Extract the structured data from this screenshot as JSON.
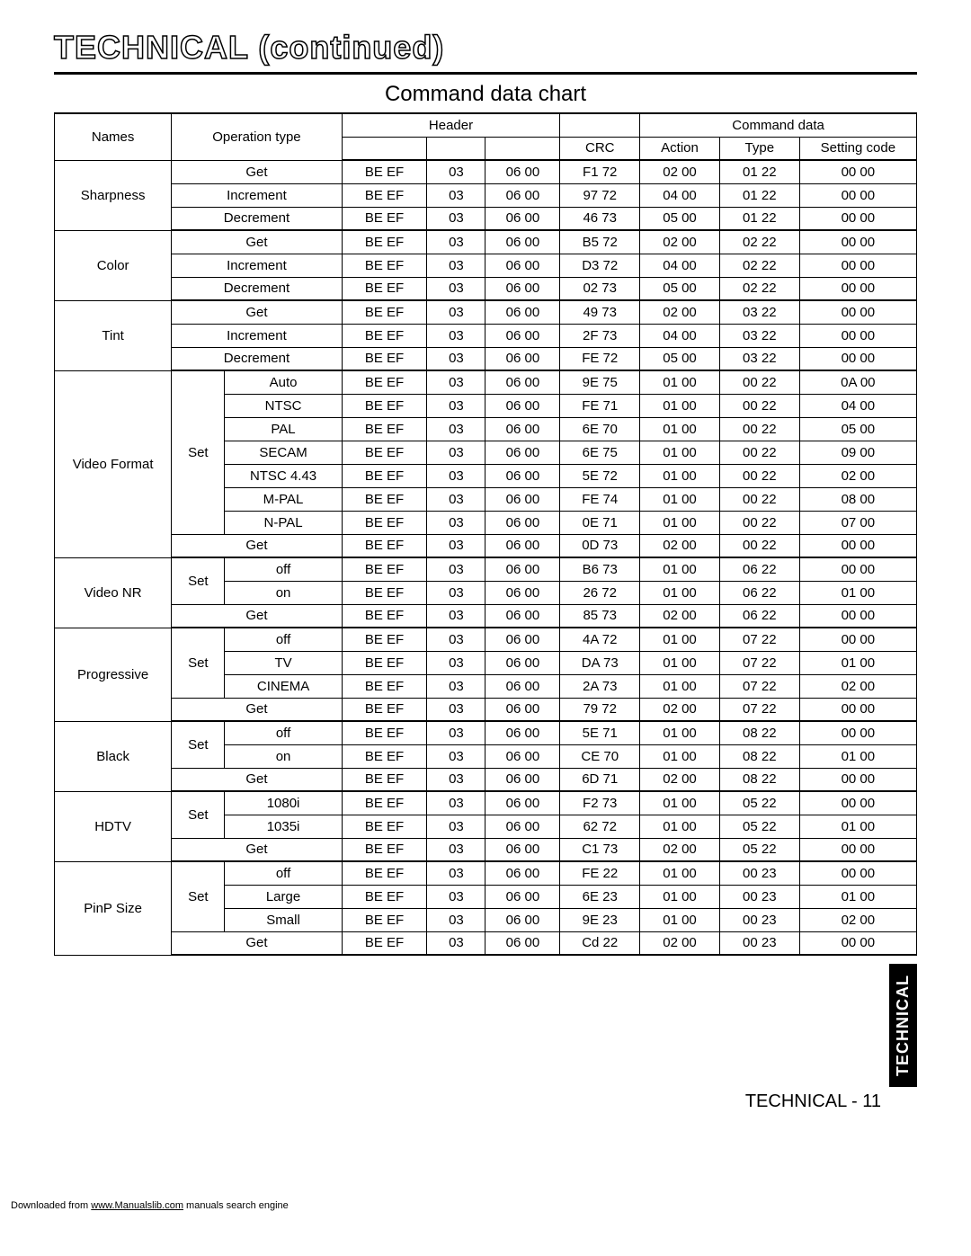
{
  "page_title": "TECHNICAL (continued)",
  "subtitle": "Command data chart",
  "side_tab": "TECHNICAL",
  "page_number": "TECHNICAL - 11",
  "footer_prefix": "Downloaded from ",
  "footer_link": "www.Manualslib.com",
  "footer_suffix": " manuals search engine",
  "header": {
    "names": "Names",
    "operation_type": "Operation type",
    "header": "Header",
    "command_data": "Command data",
    "crc": "CRC",
    "action": "Action",
    "type": "Type",
    "setting_code": "Setting code"
  },
  "groups": [
    {
      "name": "Sharpness",
      "rows": [
        {
          "op": "Get",
          "op_span": 2,
          "h1": "BE  EF",
          "h2": "03",
          "h3": "06  00",
          "crc": "F1  72",
          "action": "02  00",
          "type": "01  22",
          "setting": "00  00"
        },
        {
          "op": "Increment",
          "op_span": 2,
          "h1": "BE  EF",
          "h2": "03",
          "h3": "06  00",
          "crc": "97  72",
          "action": "04  00",
          "type": "01  22",
          "setting": "00  00"
        },
        {
          "op": "Decrement",
          "op_span": 2,
          "h1": "BE  EF",
          "h2": "03",
          "h3": "06  00",
          "crc": "46  73",
          "action": "05  00",
          "type": "01  22",
          "setting": "00  00"
        }
      ]
    },
    {
      "name": "Color",
      "rows": [
        {
          "op": "Get",
          "op_span": 2,
          "h1": "BE  EF",
          "h2": "03",
          "h3": "06  00",
          "crc": "B5  72",
          "action": "02  00",
          "type": "02  22",
          "setting": "00  00"
        },
        {
          "op": "Increment",
          "op_span": 2,
          "h1": "BE  EF",
          "h2": "03",
          "h3": "06  00",
          "crc": "D3  72",
          "action": "04  00",
          "type": "02  22",
          "setting": "00  00"
        },
        {
          "op": "Decrement",
          "op_span": 2,
          "h1": "BE  EF",
          "h2": "03",
          "h3": "06  00",
          "crc": "02  73",
          "action": "05  00",
          "type": "02  22",
          "setting": "00  00"
        }
      ]
    },
    {
      "name": "Tint",
      "rows": [
        {
          "op": "Get",
          "op_span": 2,
          "h1": "BE  EF",
          "h2": "03",
          "h3": "06  00",
          "crc": "49  73",
          "action": "02  00",
          "type": "03  22",
          "setting": "00  00"
        },
        {
          "op": "Increment",
          "op_span": 2,
          "h1": "BE  EF",
          "h2": "03",
          "h3": "06  00",
          "crc": "2F  73",
          "action": "04  00",
          "type": "03  22",
          "setting": "00  00"
        },
        {
          "op": "Decrement",
          "op_span": 2,
          "h1": "BE  EF",
          "h2": "03",
          "h3": "06  00",
          "crc": "FE  72",
          "action": "05  00",
          "type": "03  22",
          "setting": "00  00"
        }
      ]
    },
    {
      "name": "Video Format",
      "rows": [
        {
          "op1": "Set",
          "op1_rowspan": 7,
          "op2": "Auto",
          "h1": "BE  EF",
          "h2": "03",
          "h3": "06  00",
          "crc": "9E  75",
          "action": "01  00",
          "type": "00  22",
          "setting": "0A  00"
        },
        {
          "op2": "NTSC",
          "h1": "BE  EF",
          "h2": "03",
          "h3": "06  00",
          "crc": "FE  71",
          "action": "01  00",
          "type": "00  22",
          "setting": "04  00"
        },
        {
          "op2": "PAL",
          "h1": "BE  EF",
          "h2": "03",
          "h3": "06  00",
          "crc": "6E  70",
          "action": "01  00",
          "type": "00  22",
          "setting": "05  00"
        },
        {
          "op2": "SECAM",
          "h1": "BE  EF",
          "h2": "03",
          "h3": "06  00",
          "crc": "6E  75",
          "action": "01  00",
          "type": "00  22",
          "setting": "09  00"
        },
        {
          "op2": "NTSC 4.43",
          "h1": "BE  EF",
          "h2": "03",
          "h3": "06  00",
          "crc": "5E  72",
          "action": "01  00",
          "type": "00  22",
          "setting": "02  00"
        },
        {
          "op2": "M-PAL",
          "h1": "BE  EF",
          "h2": "03",
          "h3": "06  00",
          "crc": "FE  74",
          "action": "01  00",
          "type": "00  22",
          "setting": "08  00"
        },
        {
          "op2": "N-PAL",
          "h1": "BE  EF",
          "h2": "03",
          "h3": "06  00",
          "crc": "0E  71",
          "action": "01  00",
          "type": "00  22",
          "setting": "07  00"
        },
        {
          "op": "Get",
          "op_span": 2,
          "h1": "BE  EF",
          "h2": "03",
          "h3": "06  00",
          "crc": "0D  73",
          "action": "02  00",
          "type": "00  22",
          "setting": "00  00"
        }
      ]
    },
    {
      "name": "Video NR",
      "rows": [
        {
          "op1": "Set",
          "op1_rowspan": 2,
          "op2": "off",
          "h1": "BE  EF",
          "h2": "03",
          "h3": "06  00",
          "crc": "B6  73",
          "action": "01  00",
          "type": "06  22",
          "setting": "00  00"
        },
        {
          "op2": "on",
          "h1": "BE  EF",
          "h2": "03",
          "h3": "06  00",
          "crc": "26  72",
          "action": "01  00",
          "type": "06  22",
          "setting": "01  00"
        },
        {
          "op": "Get",
          "op_span": 2,
          "h1": "BE  EF",
          "h2": "03",
          "h3": "06  00",
          "crc": "85  73",
          "action": "02  00",
          "type": "06  22",
          "setting": "00  00"
        }
      ]
    },
    {
      "name": "Progressive",
      "rows": [
        {
          "op1": "Set",
          "op1_rowspan": 3,
          "op2": "off",
          "h1": "BE  EF",
          "h2": "03",
          "h3": "06  00",
          "crc": "4A  72",
          "action": "01  00",
          "type": "07  22",
          "setting": "00  00"
        },
        {
          "op2": "TV",
          "h1": "BE  EF",
          "h2": "03",
          "h3": "06  00",
          "crc": "DA  73",
          "action": "01  00",
          "type": "07  22",
          "setting": "01  00"
        },
        {
          "op2": "CINEMA",
          "h1": "BE  EF",
          "h2": "03",
          "h3": "06  00",
          "crc": "2A  73",
          "action": "01  00",
          "type": "07  22",
          "setting": "02  00"
        },
        {
          "op": "Get",
          "op_span": 2,
          "h1": "BE  EF",
          "h2": "03",
          "h3": "06  00",
          "crc": "79  72",
          "action": "02  00",
          "type": "07  22",
          "setting": "00  00"
        }
      ]
    },
    {
      "name": "Black",
      "rows": [
        {
          "op1": "Set",
          "op1_rowspan": 2,
          "op2": "off",
          "h1": "BE  EF",
          "h2": "03",
          "h3": "06  00",
          "crc": "5E  71",
          "action": "01  00",
          "type": "08  22",
          "setting": "00  00"
        },
        {
          "op2": "on",
          "h1": "BE  EF",
          "h2": "03",
          "h3": "06  00",
          "crc": "CE  70",
          "action": "01  00",
          "type": "08  22",
          "setting": "01  00"
        },
        {
          "op": "Get",
          "op_span": 2,
          "h1": "BE  EF",
          "h2": "03",
          "h3": "06  00",
          "crc": "6D  71",
          "action": "02  00",
          "type": "08  22",
          "setting": "00  00"
        }
      ]
    },
    {
      "name": "HDTV",
      "rows": [
        {
          "op1": "Set",
          "op1_rowspan": 2,
          "op2": "1080i",
          "h1": "BE  EF",
          "h2": "03",
          "h3": "06  00",
          "crc": "F2  73",
          "action": "01  00",
          "type": "05  22",
          "setting": "00  00"
        },
        {
          "op2": "1035i",
          "h1": "BE  EF",
          "h2": "03",
          "h3": "06  00",
          "crc": "62  72",
          "action": "01  00",
          "type": "05  22",
          "setting": "01  00"
        },
        {
          "op": "Get",
          "op_span": 2,
          "h1": "BE  EF",
          "h2": "03",
          "h3": "06  00",
          "crc": "C1  73",
          "action": "02  00",
          "type": "05  22",
          "setting": "00  00"
        }
      ]
    },
    {
      "name": "PinP Size",
      "rows": [
        {
          "op1": "Set",
          "op1_rowspan": 3,
          "op2": "off",
          "h1": "BE  EF",
          "h2": "03",
          "h3": "06  00",
          "crc": "FE  22",
          "action": "01  00",
          "type": "00  23",
          "setting": "00  00"
        },
        {
          "op2": "Large",
          "h1": "BE  EF",
          "h2": "03",
          "h3": "06  00",
          "crc": "6E  23",
          "action": "01  00",
          "type": "00  23",
          "setting": "01  00"
        },
        {
          "op2": "Small",
          "h1": "BE  EF",
          "h2": "03",
          "h3": "06  00",
          "crc": "9E  23",
          "action": "01  00",
          "type": "00  23",
          "setting": "02  00"
        },
        {
          "op": "Get",
          "op_span": 2,
          "h1": "BE  EF",
          "h2": "03",
          "h3": "06  00",
          "crc": "Cd  22",
          "action": "02  00",
          "type": "00  23",
          "setting": "00  00"
        }
      ]
    }
  ]
}
